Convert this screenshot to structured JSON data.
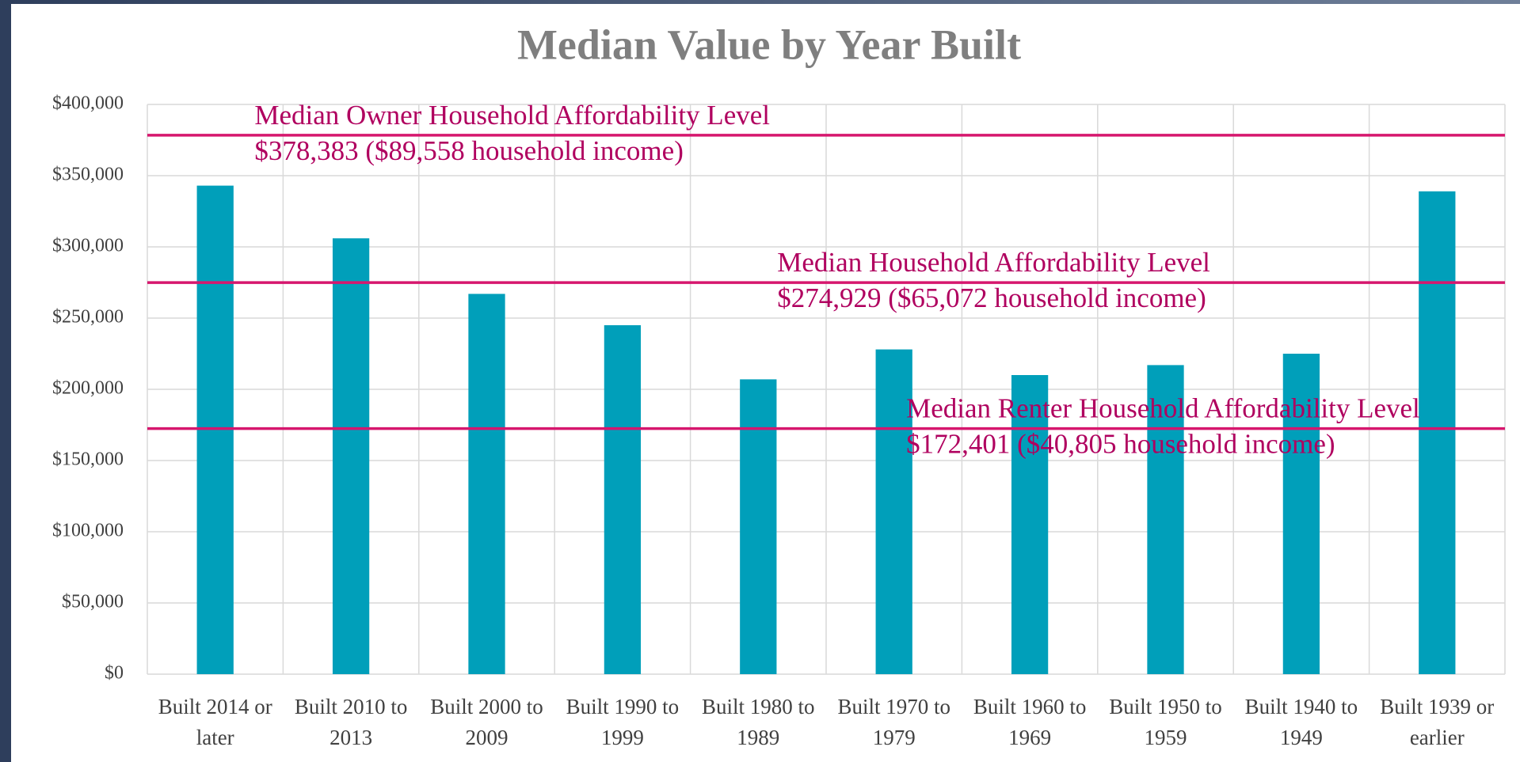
{
  "chart_data": {
    "type": "bar",
    "title": "Median Value by Year Built",
    "categories": [
      "Built 2014 or later",
      "Built 2010 to 2013",
      "Built 2000 to 2009",
      "Built 1990 to 1999",
      "Built 1980 to 1989",
      "Built 1970 to 1979",
      "Built 1960 to 1969",
      "Built 1950 to 1959",
      "Built 1940 to 1949",
      "Built 1939 or earlier"
    ],
    "values": [
      343000,
      306000,
      267000,
      245000,
      207000,
      228000,
      210000,
      217000,
      225000,
      339000
    ],
    "color": "#009fba",
    "ylim": [
      0,
      400000
    ],
    "yticks": [
      {
        "value": 0,
        "label": "$0"
      },
      {
        "value": 50000,
        "label": "$50,000"
      },
      {
        "value": 100000,
        "label": "$100,000"
      },
      {
        "value": 150000,
        "label": "$150,000"
      },
      {
        "value": 200000,
        "label": "$200,000"
      },
      {
        "value": 250000,
        "label": "$250,000"
      },
      {
        "value": 300000,
        "label": "$300,000"
      },
      {
        "value": 350000,
        "label": "$350,000"
      },
      {
        "value": 400000,
        "label": "$400,000"
      }
    ],
    "grid": true,
    "reference_lines": [
      {
        "label": "Median Owner Household Affordability Level",
        "value": 378383,
        "value_label": "$378,383 ($89,558 household income)",
        "color": "#d6176e"
      },
      {
        "label": "Median Household Affordability Level",
        "value": 274929,
        "value_label": "$274,929 ($65,072 household income)",
        "color": "#d6176e"
      },
      {
        "label": "Median Renter Household Affordability Level",
        "value": 172401,
        "value_label": "$172,401 ($40,805 household income)",
        "color": "#d6176e"
      }
    ]
  }
}
